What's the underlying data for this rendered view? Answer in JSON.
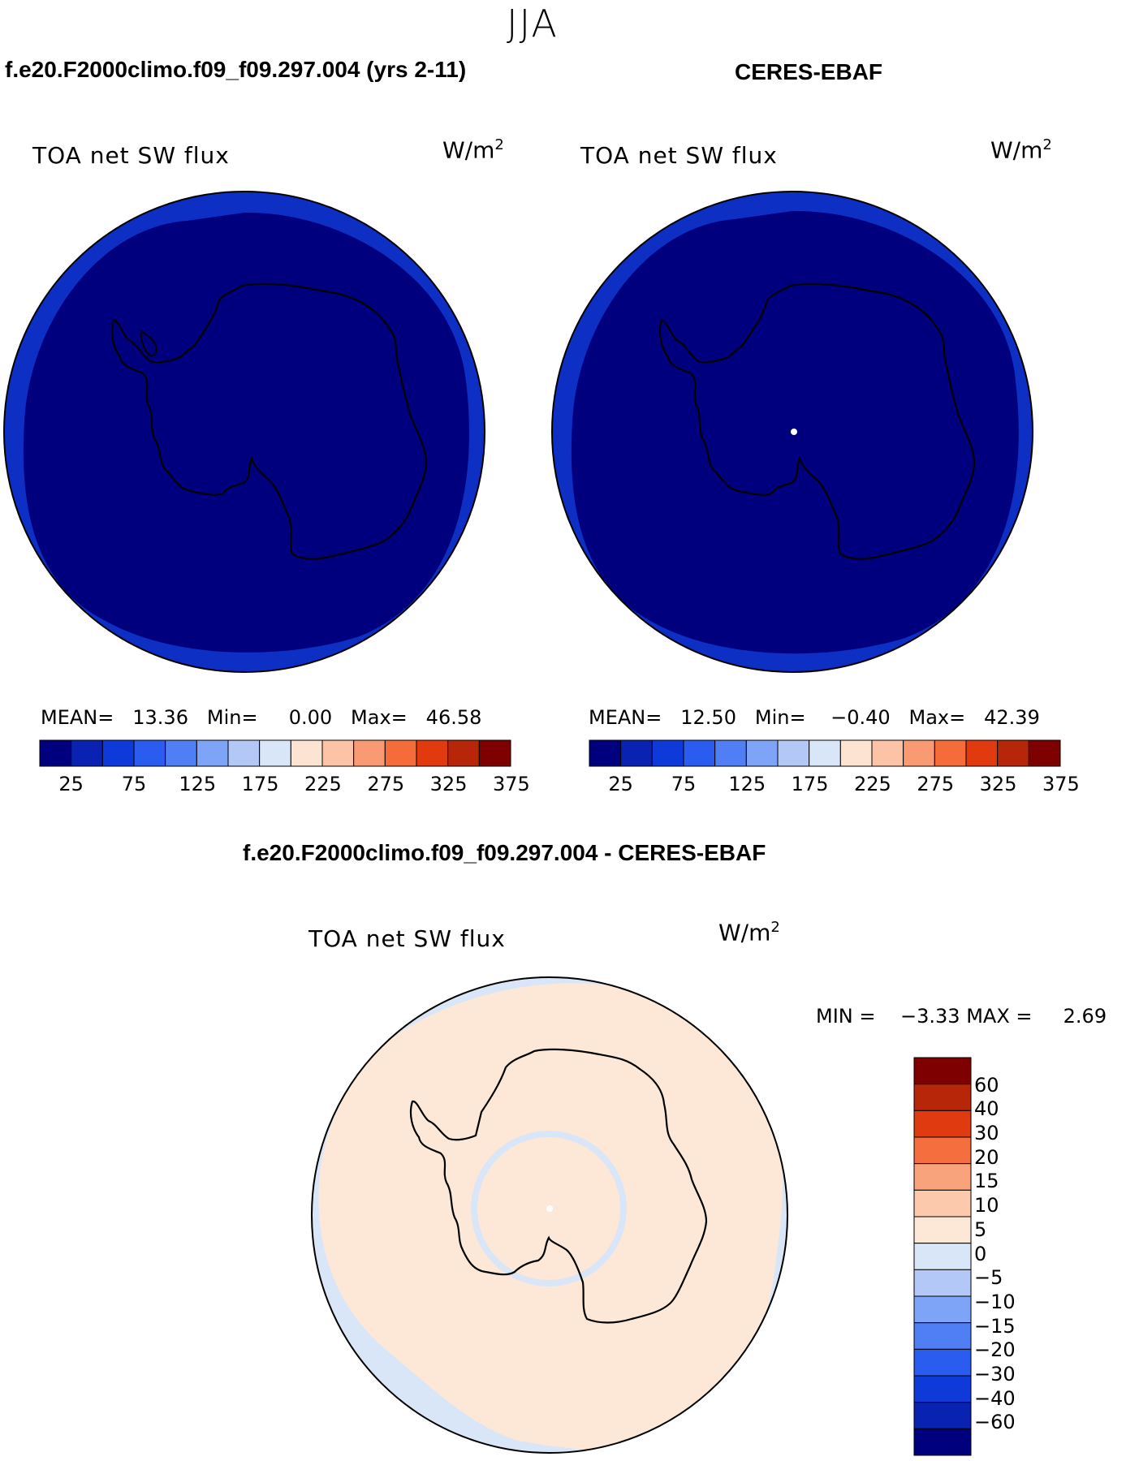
{
  "season": "JJA",
  "colors": {
    "levels_abs": [
      "#00007f",
      "#0a22b2",
      "#0d3ad9",
      "#2b5cf0",
      "#4f7ef5",
      "#7ea4f7",
      "#b3c8f7",
      "#d9e6f7",
      "#fde4d2",
      "#fcc3a6",
      "#f99a72",
      "#f56b39",
      "#e23a0f",
      "#b8260a",
      "#7f0000"
    ],
    "levels_diff": [
      "#00007f",
      "#0a22b2",
      "#0d3ad9",
      "#2b5cf0",
      "#4f7ef5",
      "#7ea4f7",
      "#b3c8f7",
      "#d9e6f7",
      "#fde8d8",
      "#fcc9ad",
      "#f9a37c",
      "#f56f3e",
      "#e03a10",
      "#b8260a",
      "#7f0000"
    ]
  },
  "icons": [
    "coastline-outline"
  ],
  "panels": {
    "model": {
      "title": "f.e20.F2000climo.f09_f09.297.004 (yrs 2-11)",
      "variable": "TOA net SW flux",
      "units": "W/m",
      "units_exp": "2",
      "stats": {
        "mean_label": "MEAN=",
        "mean": "13.36",
        "min_label": "Min=",
        "min": "0.00",
        "max_label": "Max=",
        "max": "46.58"
      },
      "colorbar_labels": [
        "25",
        "75",
        "125",
        "175",
        "225",
        "275",
        "325",
        "375"
      ]
    },
    "obs": {
      "title": "CERES-EBAF",
      "variable": "TOA net SW flux",
      "units": "W/m",
      "units_exp": "2",
      "stats": {
        "mean_label": "MEAN=",
        "mean": "12.50",
        "min_label": "Min=",
        "min": "−0.40",
        "max_label": "Max=",
        "max": "42.39"
      },
      "colorbar_labels": [
        "25",
        "75",
        "125",
        "175",
        "225",
        "275",
        "325",
        "375"
      ]
    },
    "diff": {
      "title": "f.e20.F2000climo.f09_f09.297.004 - CERES-EBAF",
      "variable": "TOA net SW flux",
      "units": "W/m",
      "units_exp": "2",
      "minmax": {
        "min_label": "MIN =",
        "min": "−3.33",
        "max_label": "MAX =",
        "max": "2.69"
      },
      "colorbar_labels": [
        "60",
        "40",
        "30",
        "20",
        "15",
        "10",
        "5",
        "0",
        "−5",
        "−10",
        "−15",
        "−20",
        "−30",
        "−40",
        "−60"
      ]
    }
  }
}
